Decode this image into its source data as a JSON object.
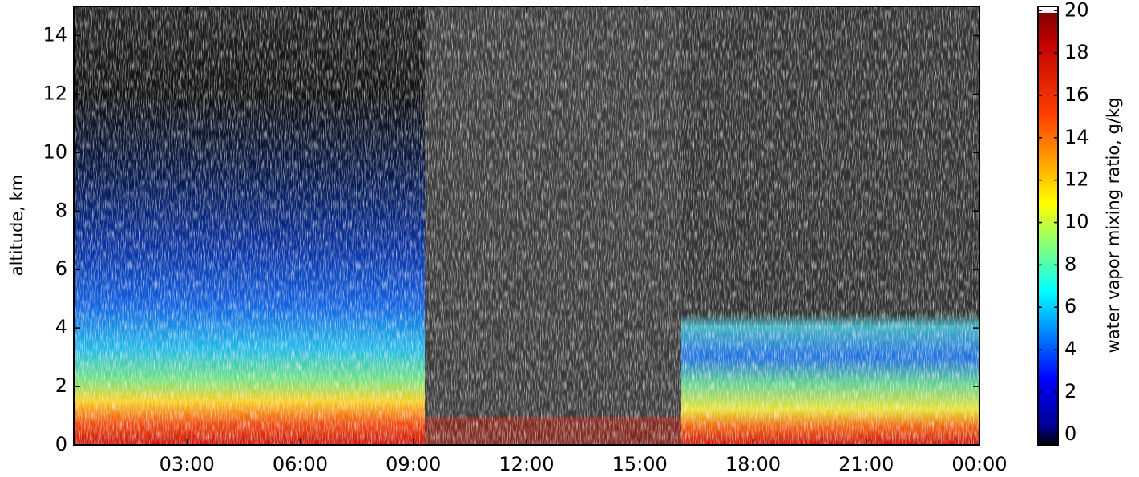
{
  "chart_data": {
    "type": "heatmap",
    "ylabel": "altitude, km",
    "xlim": [
      0,
      24
    ],
    "xticks": [
      {
        "value": 3,
        "label": "03:00"
      },
      {
        "value": 6,
        "label": "06:00"
      },
      {
        "value": 9,
        "label": "09:00"
      },
      {
        "value": 12,
        "label": "12:00"
      },
      {
        "value": 15,
        "label": "15:00"
      },
      {
        "value": 18,
        "label": "18:00"
      },
      {
        "value": 21,
        "label": "21:00"
      },
      {
        "value": 24,
        "label": "00:00"
      }
    ],
    "ylim": [
      0,
      15
    ],
    "yticks": [
      0,
      2,
      4,
      6,
      8,
      10,
      12,
      14
    ],
    "colorbar": {
      "label": "water vapor mixing ratio, g/kg",
      "lim": [
        -0.5,
        20.2
      ],
      "ticks": [
        0,
        2,
        4,
        6,
        8,
        10,
        12,
        14,
        16,
        18,
        20
      ]
    }
  }
}
